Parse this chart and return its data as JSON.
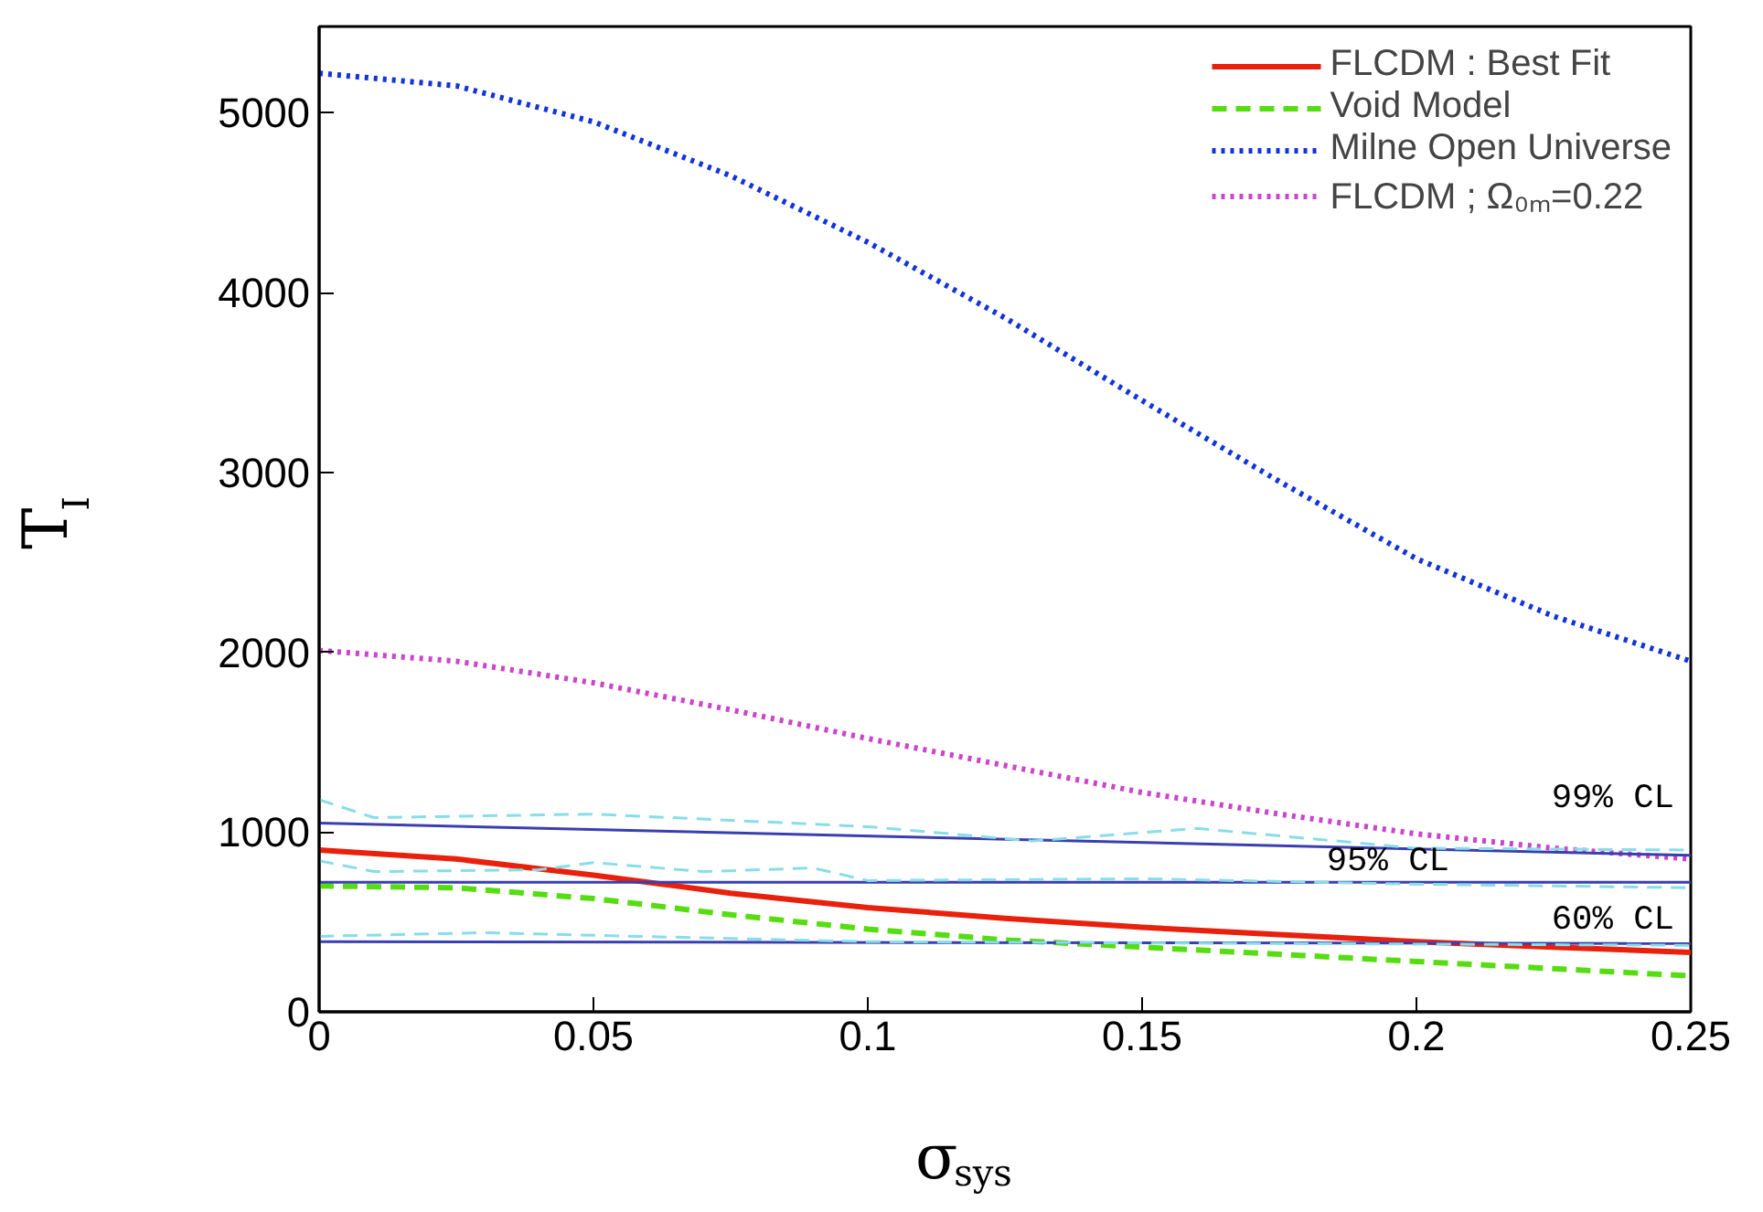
{
  "chart_data": {
    "type": "line",
    "xlabel": "σ$_{sys}$",
    "ylabel": "T$_{I}$",
    "xlim": [
      0,
      0.25
    ],
    "ylim": [
      0,
      5480
    ],
    "xticks": [
      0,
      0.05,
      0.1,
      0.15,
      0.2,
      0.25
    ],
    "yticks": [
      0,
      1000,
      2000,
      3000,
      4000,
      5000
    ],
    "grid": false,
    "legend": "top right",
    "x": [
      0,
      0.025,
      0.05,
      0.075,
      0.1,
      0.125,
      0.15,
      0.175,
      0.2,
      0.225,
      0.25
    ],
    "series": [
      {
        "name": "FLCDM : Best Fit",
        "color": "#e8200c",
        "line_style": "solid",
        "values": [
          900,
          850,
          760,
          660,
          580,
          520,
          470,
          430,
          390,
          360,
          330
        ]
      },
      {
        "name": "Void Model",
        "color": "#55dd11",
        "line_style": "dashed",
        "values": [
          700,
          690,
          630,
          540,
          460,
          400,
          360,
          320,
          280,
          240,
          200
        ]
      },
      {
        "name": "Milne Open Universe",
        "color": "#1133dd",
        "line_style": "dotted",
        "values": [
          5220,
          5150,
          4950,
          4650,
          4280,
          3860,
          3400,
          2950,
          2520,
          2200,
          1950
        ]
      },
      {
        "name": "FLCDM ; Ω₀ₘ=0.22",
        "color": "#cc44cc",
        "line_style": "dotted",
        "values": [
          2010,
          1950,
          1830,
          1680,
          1520,
          1370,
          1220,
          1100,
          990,
          910,
          850
        ]
      },
      {
        "color": "#3a3fb0",
        "line_style": "solid",
        "x": [
          0,
          0.25
        ],
        "values": [
          1050,
          870
        ]
      },
      {
        "color": "#3a3fb0",
        "line_style": "solid",
        "x": [
          0,
          0.25
        ],
        "values": [
          720,
          720
        ]
      },
      {
        "color": "#3a3fb0",
        "line_style": "solid",
        "x": [
          0,
          0.25
        ],
        "values": [
          390,
          380
        ]
      },
      {
        "color": "#88dde8",
        "line_style": "dashed",
        "x": [
          0,
          0.01,
          0.05,
          0.1,
          0.13,
          0.16,
          0.2,
          0.25
        ],
        "values": [
          1180,
          1080,
          1100,
          1030,
          950,
          1020,
          910,
          900
        ]
      },
      {
        "color": "#88dde8",
        "line_style": "dashed",
        "x": [
          0,
          0.01,
          0.04,
          0.05,
          0.07,
          0.09,
          0.1,
          0.15,
          0.2,
          0.25
        ],
        "values": [
          840,
          780,
          790,
          830,
          780,
          800,
          730,
          740,
          710,
          690
        ]
      },
      {
        "color": "#88dde8",
        "line_style": "dashed",
        "x": [
          0,
          0.03,
          0.1,
          0.25
        ],
        "values": [
          420,
          440,
          390,
          370
        ]
      }
    ],
    "annotations": [
      "99% CL",
      "95% CL",
      "60% CL"
    ]
  }
}
